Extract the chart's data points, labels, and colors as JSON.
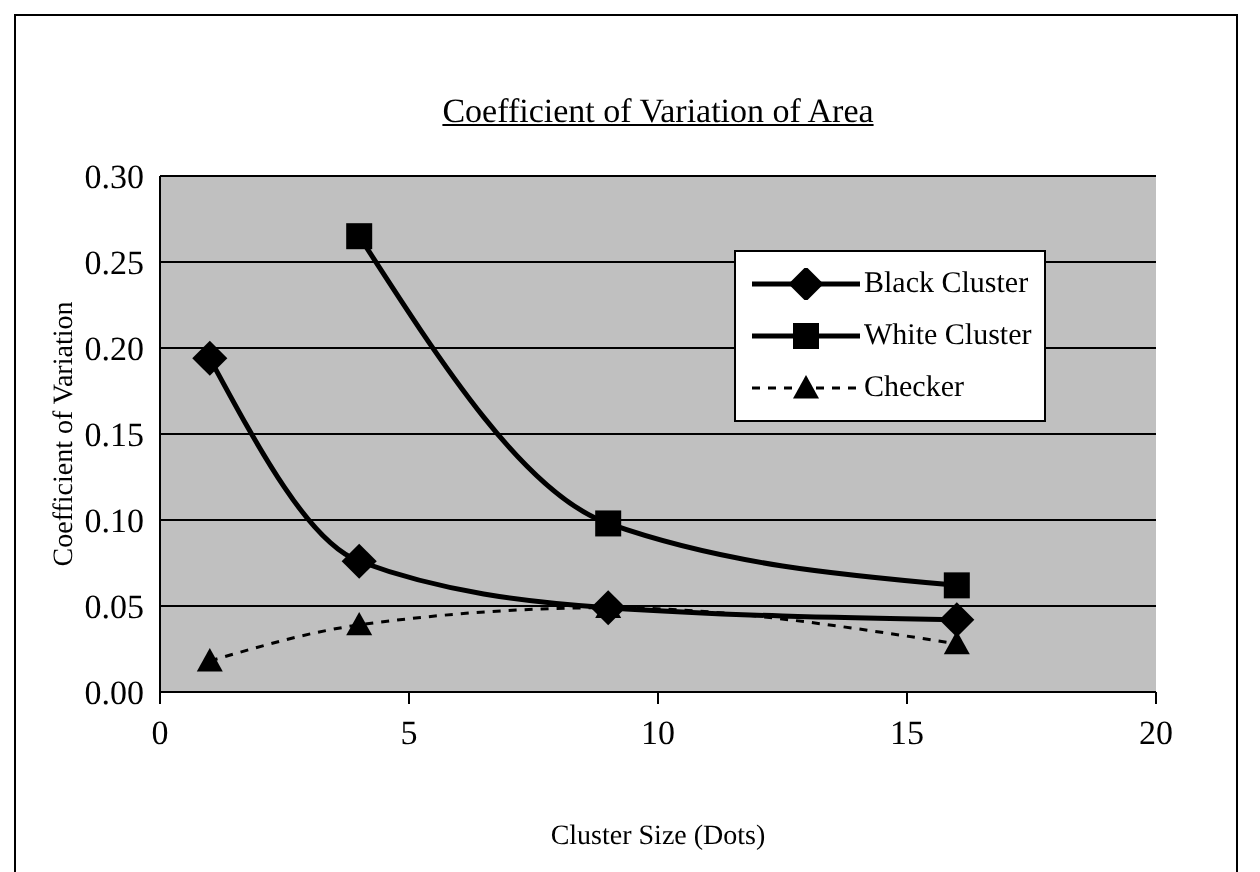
{
  "chart_data": {
    "type": "line",
    "title": "Coefficient of Variation of Area",
    "xlabel": "Cluster Size (Dots)",
    "ylabel": "Coefficient of Variation",
    "x": [
      1,
      4,
      9,
      16
    ],
    "series": [
      {
        "name": "Black Cluster",
        "color": "#000000",
        "values": [
          0.194,
          0.076,
          0.049,
          0.042
        ],
        "marker": "diamond",
        "line_style": "solid"
      },
      {
        "name": "White Cluster",
        "color": "#000000",
        "values": [
          null,
          0.265,
          0.098,
          0.062
        ],
        "marker": "square",
        "line_style": "solid"
      },
      {
        "name": "Checker",
        "color": "#000000",
        "values": [
          0.018,
          0.039,
          0.049,
          0.028
        ],
        "marker": "triangle",
        "line_style": "dashed"
      }
    ],
    "xlim": [
      0,
      20
    ],
    "xticks": [
      0,
      5,
      10,
      15,
      20
    ],
    "ylim": [
      0,
      0.3
    ],
    "yticks": [
      {
        "value": 0,
        "label": "0.00"
      },
      {
        "value": 0.05,
        "label": "0.05"
      },
      {
        "value": 0.1,
        "label": "0.10"
      },
      {
        "value": 0.15,
        "label": "0.15"
      },
      {
        "value": 0.2,
        "label": "0.20"
      },
      {
        "value": 0.25,
        "label": "0.25"
      },
      {
        "value": 0.3,
        "label": "0.30"
      }
    ],
    "grid": "y",
    "legend": "top right"
  }
}
